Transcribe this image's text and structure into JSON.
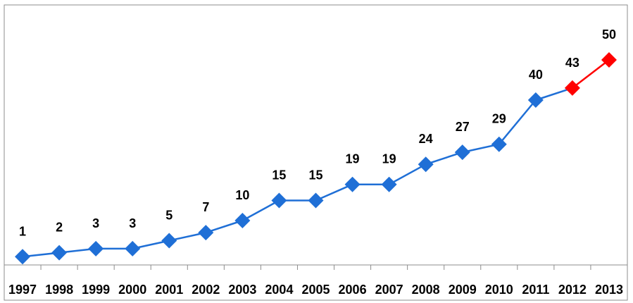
{
  "chart_data": {
    "type": "line",
    "categories": [
      "1997",
      "1998",
      "1999",
      "2000",
      "2001",
      "2002",
      "2003",
      "2004",
      "2005",
      "2006",
      "2007",
      "2008",
      "2009",
      "2010",
      "2011",
      "2012",
      "2013"
    ],
    "values": [
      1,
      2,
      3,
      3,
      5,
      7,
      10,
      15,
      15,
      19,
      19,
      24,
      27,
      29,
      40,
      43,
      50
    ],
    "highlighted_categories": [
      "2012",
      "2013"
    ],
    "title": "",
    "xlabel": "",
    "ylabel": "",
    "ylim": [
      0,
      55
    ],
    "grid": false,
    "legend": "none",
    "colors": {
      "series": "#1f6fd6",
      "highlight": "#ff0000",
      "axis": "#8c8c8c",
      "text": "#000000"
    }
  }
}
